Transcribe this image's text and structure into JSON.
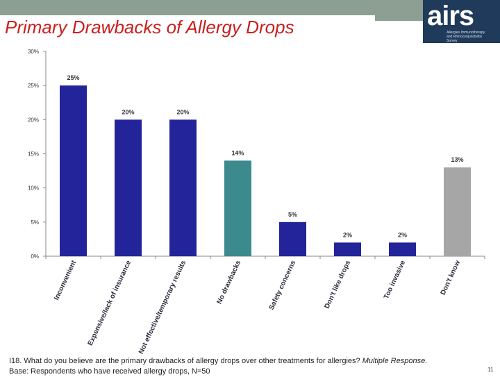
{
  "header": {
    "title": "Primary Drawbacks of Allergy Drops"
  },
  "logo": {
    "wordmark": "airs",
    "line1": "Allergies Immunotherapy",
    "line2": "and Rhinoconjunctivitis",
    "line3": "Survey"
  },
  "chart_data": {
    "type": "bar",
    "categories": [
      "Inconvenient",
      "Expensive/lack of insurance",
      "Not effective/temporary results",
      "No drawbacks",
      "Safety concerns",
      "Don't like drops",
      "Too invasive",
      "Don't know"
    ],
    "values": [
      25,
      20,
      20,
      14,
      5,
      2,
      2,
      13
    ],
    "data_labels": [
      "25%",
      "20%",
      "20%",
      "14%",
      "5%",
      "2%",
      "2%",
      "13%"
    ],
    "bar_colors": [
      "#23249a",
      "#23249a",
      "#23249a",
      "#3c8a8e",
      "#23249a",
      "#23249a",
      "#23249a",
      "#a6a6a6"
    ],
    "yticks": [
      "0%",
      "5%",
      "10%",
      "15%",
      "20%",
      "25%",
      "30%"
    ],
    "ylim": [
      0,
      30
    ],
    "xlabel": "",
    "ylabel": "",
    "grid": false,
    "legend": "none"
  },
  "footer": {
    "question": "I18. What do you believe are the primary drawbacks of allergy drops over other treatments for allergies?",
    "question_qualifier": "Multiple Response.",
    "base": "Base: Respondents who have received allergy drops, N=50"
  },
  "page": {
    "number": "11"
  }
}
